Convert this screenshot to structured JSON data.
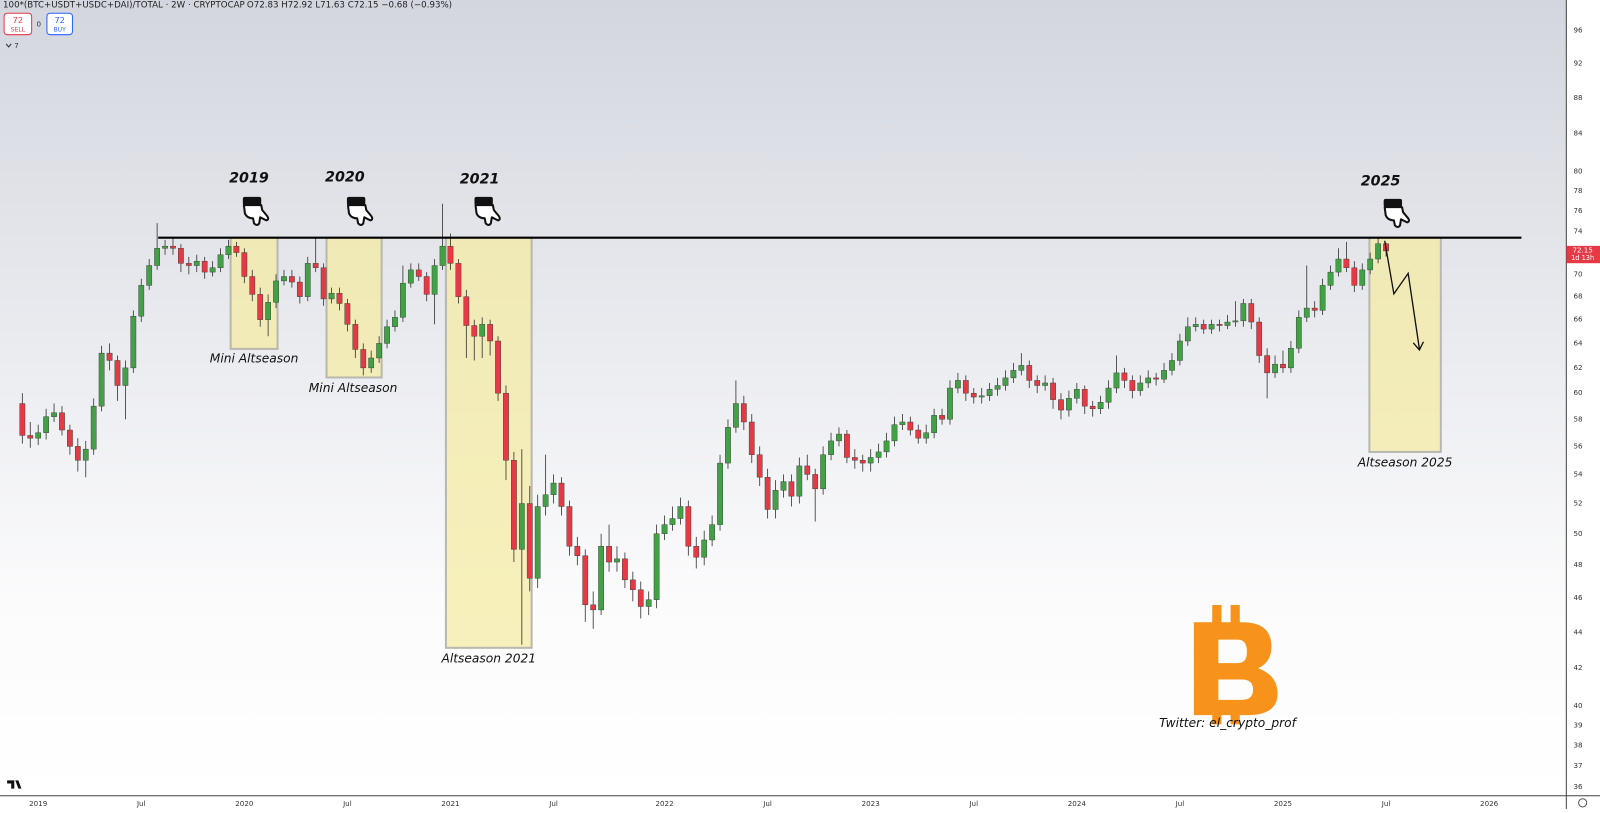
{
  "chart_data": {
    "type": "candlestick",
    "title": "100*(BTC+USDT+USDC+DAI)/TOTAL · 2W · CRYPTOCAP",
    "subtitle": "O72.83 H72.92 L71.63 C72.15 −0.68 (−0.93%)",
    "toolbar": {
      "sell": "72",
      "sell_label": "SELL",
      "spread": "0",
      "buy": "72",
      "buy_label": "BUY",
      "indicators": "7"
    },
    "countdown": "1d 13h",
    "log_scale": true,
    "grid": false,
    "up_color": "#43a047",
    "down_color": "#e53945",
    "ylim": [
      35.6,
      99.9
    ],
    "yticks": [
      36,
      37,
      38,
      39,
      40,
      42,
      44,
      46,
      48,
      50,
      52,
      54,
      56,
      58,
      60,
      62,
      64,
      66,
      68,
      70,
      72,
      74,
      76,
      78,
      80,
      84,
      88,
      92,
      96
    ],
    "annotations": [
      "2019",
      "2020",
      "2021",
      "2025",
      "Mini Altseason",
      "Mini Altseason",
      "Altseason 2021",
      "Altseason 2025",
      "Twitter: el_crypto_prof"
    ],
    "categories": [
      null,
      null,
      "2019",
      null,
      null,
      null,
      null,
      null,
      null,
      null,
      null,
      null,
      null,
      null,
      null,
      "Jul",
      null,
      null,
      null,
      null,
      null,
      null,
      null,
      null,
      null,
      null,
      null,
      null,
      "2020",
      null,
      null,
      null,
      null,
      null,
      null,
      null,
      null,
      null,
      null,
      null,
      null,
      "Jul",
      null,
      null,
      null,
      null,
      null,
      null,
      null,
      null,
      null,
      null,
      null,
      null,
      "2021",
      null,
      null,
      null,
      null,
      null,
      null,
      null,
      null,
      null,
      null,
      null,
      null,
      "Jul",
      null,
      null,
      null,
      null,
      null,
      null,
      null,
      null,
      null,
      null,
      null,
      null,
      null,
      "2022",
      null,
      null,
      null,
      null,
      null,
      null,
      null,
      null,
      null,
      null,
      null,
      null,
      "Jul",
      null,
      null,
      null,
      null,
      null,
      null,
      null,
      null,
      null,
      null,
      null,
      null,
      "2023",
      null,
      null,
      null,
      null,
      null,
      null,
      null,
      null,
      null,
      null,
      null,
      null,
      "Jul",
      null,
      null,
      null,
      null,
      null,
      null,
      null,
      null,
      null,
      null,
      null,
      null,
      "2024",
      null,
      null,
      null,
      null,
      null,
      null,
      null,
      null,
      null,
      null,
      null,
      null,
      "Jul",
      null,
      null,
      null,
      null,
      null,
      null,
      null,
      null,
      null,
      null,
      null,
      null,
      "2025",
      null,
      null,
      null,
      null,
      null,
      null,
      null,
      null,
      null,
      null,
      null,
      null,
      "Jul",
      null,
      null,
      null,
      null,
      null,
      null,
      null,
      null,
      null,
      null,
      null,
      null,
      "2026",
      null
    ],
    "ohlc": [
      [
        59.2,
        60.0,
        56.2,
        56.8
      ],
      [
        56.8,
        57.8,
        55.9,
        56.6
      ],
      [
        56.6,
        57.6,
        56.1,
        57.0
      ],
      [
        57.0,
        58.8,
        56.5,
        58.2
      ],
      [
        58.2,
        59.2,
        57.8,
        58.5
      ],
      [
        58.5,
        59.0,
        56.8,
        57.2
      ],
      [
        57.2,
        57.6,
        55.4,
        56.0
      ],
      [
        56.0,
        56.6,
        54.2,
        55.0
      ],
      [
        55.0,
        56.4,
        53.8,
        55.8
      ],
      [
        55.8,
        59.6,
        55.4,
        59.0
      ],
      [
        59.0,
        63.8,
        58.6,
        63.2
      ],
      [
        63.2,
        64.0,
        61.8,
        62.6
      ],
      [
        62.6,
        63.0,
        59.4,
        60.6
      ],
      [
        60.6,
        62.6,
        58.0,
        62.0
      ],
      [
        62.0,
        66.8,
        61.6,
        66.3
      ],
      [
        66.3,
        69.6,
        65.8,
        69.0
      ],
      [
        69.0,
        71.4,
        68.6,
        70.8
      ],
      [
        70.8,
        74.8,
        70.4,
        72.4
      ],
      [
        72.4,
        73.2,
        71.8,
        72.6
      ],
      [
        72.6,
        73.4,
        71.8,
        72.4
      ],
      [
        72.4,
        72.8,
        70.2,
        71.0
      ],
      [
        71.0,
        71.6,
        70.0,
        70.8
      ],
      [
        70.8,
        71.8,
        70.2,
        71.2
      ],
      [
        71.2,
        71.6,
        69.6,
        70.2
      ],
      [
        70.2,
        71.2,
        69.8,
        70.6
      ],
      [
        70.6,
        72.4,
        70.2,
        71.8
      ],
      [
        71.8,
        73.2,
        71.4,
        72.6
      ],
      [
        72.6,
        73.0,
        71.6,
        72.0
      ],
      [
        72.0,
        72.4,
        69.2,
        69.8
      ],
      [
        69.8,
        70.4,
        67.6,
        68.2
      ],
      [
        68.2,
        68.8,
        65.4,
        66.0
      ],
      [
        66.0,
        68.2,
        64.6,
        67.5
      ],
      [
        67.5,
        70.0,
        67.0,
        69.4
      ],
      [
        69.4,
        70.4,
        69.0,
        69.8
      ],
      [
        69.8,
        70.4,
        68.8,
        69.3
      ],
      [
        69.3,
        69.8,
        67.4,
        68.0
      ],
      [
        68.0,
        71.6,
        67.6,
        71.0
      ],
      [
        71.0,
        73.4,
        70.2,
        70.6
      ],
      [
        70.6,
        71.0,
        67.2,
        67.8
      ],
      [
        67.8,
        68.8,
        67.4,
        68.3
      ],
      [
        68.3,
        68.8,
        66.8,
        67.4
      ],
      [
        67.4,
        67.8,
        65.0,
        65.6
      ],
      [
        65.6,
        66.0,
        62.8,
        63.5
      ],
      [
        63.5,
        64.0,
        61.4,
        62.0
      ],
      [
        62.0,
        63.4,
        61.6,
        62.8
      ],
      [
        62.8,
        64.6,
        62.4,
        64.0
      ],
      [
        64.0,
        66.0,
        63.6,
        65.4
      ],
      [
        65.4,
        66.8,
        65.0,
        66.2
      ],
      [
        66.2,
        70.8,
        65.8,
        69.2
      ],
      [
        69.2,
        71.0,
        68.8,
        70.4
      ],
      [
        70.4,
        71.0,
        69.4,
        69.8
      ],
      [
        69.8,
        70.2,
        67.6,
        68.2
      ],
      [
        68.2,
        71.4,
        65.6,
        70.8
      ],
      [
        70.8,
        76.7,
        70.4,
        72.6
      ],
      [
        72.6,
        73.8,
        70.4,
        71.0
      ],
      [
        71.0,
        71.4,
        67.4,
        68.0
      ],
      [
        68.0,
        68.6,
        62.8,
        65.5
      ],
      [
        65.5,
        66.0,
        62.6,
        64.6
      ],
      [
        64.6,
        66.2,
        62.8,
        65.6
      ],
      [
        65.6,
        66.0,
        63.0,
        64.2
      ],
      [
        64.2,
        64.6,
        59.4,
        60.0
      ],
      [
        60.0,
        60.6,
        53.6,
        55.0
      ],
      [
        55.0,
        55.6,
        48.2,
        49.0
      ],
      [
        49.0,
        55.8,
        43.3,
        52.0
      ],
      [
        52.0,
        53.2,
        46.4,
        47.2
      ],
      [
        47.2,
        52.6,
        46.6,
        51.8
      ],
      [
        51.8,
        55.4,
        51.2,
        52.6
      ],
      [
        52.6,
        54.0,
        52.0,
        53.4
      ],
      [
        53.4,
        53.8,
        51.2,
        51.8
      ],
      [
        51.8,
        52.2,
        48.6,
        49.2
      ],
      [
        49.2,
        49.8,
        48.0,
        48.6
      ],
      [
        48.6,
        49.0,
        44.6,
        45.6
      ],
      [
        45.6,
        46.4,
        44.2,
        45.3
      ],
      [
        45.3,
        50.0,
        45.0,
        49.2
      ],
      [
        49.2,
        50.6,
        47.6,
        48.2
      ],
      [
        48.2,
        49.2,
        47.6,
        48.4
      ],
      [
        48.4,
        48.8,
        46.6,
        47.1
      ],
      [
        47.1,
        47.6,
        45.8,
        46.5
      ],
      [
        46.5,
        47.0,
        44.8,
        45.5
      ],
      [
        45.5,
        46.4,
        45.0,
        45.9
      ],
      [
        45.9,
        50.6,
        45.4,
        50.0
      ],
      [
        50.0,
        51.2,
        49.6,
        50.6
      ],
      [
        50.6,
        51.8,
        50.2,
        51.0
      ],
      [
        51.0,
        52.4,
        50.6,
        51.8
      ],
      [
        51.8,
        52.2,
        48.6,
        49.2
      ],
      [
        49.2,
        49.8,
        47.8,
        48.5
      ],
      [
        48.5,
        50.2,
        48.0,
        49.6
      ],
      [
        49.6,
        51.2,
        49.2,
        50.6
      ],
      [
        50.6,
        55.4,
        50.2,
        54.8
      ],
      [
        54.8,
        58.0,
        54.4,
        57.4
      ],
      [
        57.4,
        61.0,
        57.0,
        59.2
      ],
      [
        59.2,
        59.8,
        57.2,
        57.8
      ],
      [
        57.8,
        58.4,
        54.8,
        55.4
      ],
      [
        55.4,
        56.0,
        53.2,
        53.8
      ],
      [
        53.8,
        54.4,
        51.0,
        51.6
      ],
      [
        51.6,
        53.6,
        51.0,
        52.9
      ],
      [
        52.9,
        54.0,
        52.4,
        53.5
      ],
      [
        53.5,
        54.0,
        51.8,
        52.5
      ],
      [
        52.5,
        55.2,
        52.0,
        54.6
      ],
      [
        54.6,
        55.4,
        53.6,
        54.0
      ],
      [
        54.0,
        54.4,
        50.8,
        53.0
      ],
      [
        53.0,
        56.0,
        52.6,
        55.4
      ],
      [
        55.4,
        57.0,
        55.0,
        56.4
      ],
      [
        56.4,
        57.4,
        56.0,
        56.9
      ],
      [
        56.9,
        57.2,
        54.8,
        55.2
      ],
      [
        55.2,
        55.8,
        54.4,
        55.0
      ],
      [
        55.0,
        55.4,
        54.2,
        54.8
      ],
      [
        54.8,
        55.8,
        54.2,
        55.2
      ],
      [
        55.2,
        56.2,
        54.8,
        55.6
      ],
      [
        55.6,
        57.0,
        55.2,
        56.4
      ],
      [
        56.4,
        58.2,
        56.0,
        57.6
      ],
      [
        57.6,
        58.4,
        57.2,
        57.8
      ],
      [
        57.8,
        58.2,
        56.8,
        57.2
      ],
      [
        57.2,
        57.6,
        56.2,
        56.6
      ],
      [
        56.6,
        57.6,
        56.2,
        57.0
      ],
      [
        57.0,
        58.8,
        56.6,
        58.3
      ],
      [
        58.3,
        58.8,
        57.6,
        58.0
      ],
      [
        58.0,
        61.0,
        57.6,
        60.4
      ],
      [
        60.4,
        61.6,
        60.0,
        61.0
      ],
      [
        61.0,
        61.4,
        59.4,
        60.0
      ],
      [
        60.0,
        60.4,
        59.2,
        59.7
      ],
      [
        59.7,
        60.4,
        59.2,
        59.8
      ],
      [
        59.8,
        60.8,
        59.4,
        60.3
      ],
      [
        60.3,
        61.2,
        59.8,
        60.6
      ],
      [
        60.6,
        61.8,
        60.2,
        61.2
      ],
      [
        61.2,
        62.4,
        60.8,
        61.8
      ],
      [
        61.8,
        63.2,
        61.4,
        62.2
      ],
      [
        62.2,
        62.6,
        60.4,
        61.0
      ],
      [
        61.0,
        61.4,
        60.0,
        60.6
      ],
      [
        60.6,
        61.4,
        60.2,
        60.8
      ],
      [
        60.8,
        61.2,
        58.8,
        59.5
      ],
      [
        59.5,
        60.0,
        58.0,
        58.7
      ],
      [
        58.7,
        60.2,
        58.2,
        59.6
      ],
      [
        59.6,
        60.8,
        59.2,
        60.3
      ],
      [
        60.3,
        60.6,
        58.4,
        59.0
      ],
      [
        59.0,
        59.4,
        58.2,
        58.8
      ],
      [
        58.8,
        59.8,
        58.4,
        59.3
      ],
      [
        59.3,
        61.0,
        58.8,
        60.4
      ],
      [
        60.4,
        63.0,
        60.0,
        61.6
      ],
      [
        61.6,
        62.0,
        60.4,
        61.0
      ],
      [
        61.0,
        61.4,
        59.6,
        60.2
      ],
      [
        60.2,
        61.4,
        59.8,
        60.8
      ],
      [
        60.8,
        61.8,
        60.4,
        61.2
      ],
      [
        61.2,
        61.6,
        60.6,
        61.1
      ],
      [
        61.1,
        62.4,
        60.8,
        61.8
      ],
      [
        61.8,
        63.2,
        61.4,
        62.6
      ],
      [
        62.6,
        64.8,
        62.2,
        64.2
      ],
      [
        64.2,
        66.2,
        63.8,
        65.4
      ],
      [
        65.4,
        66.2,
        65.0,
        65.6
      ],
      [
        65.6,
        66.0,
        64.8,
        65.2
      ],
      [
        65.2,
        66.0,
        64.8,
        65.6
      ],
      [
        65.6,
        66.0,
        65.0,
        65.5
      ],
      [
        65.5,
        66.4,
        65.2,
        65.8
      ],
      [
        65.8,
        67.6,
        65.4,
        65.9
      ],
      [
        65.9,
        67.8,
        65.4,
        67.4
      ],
      [
        67.4,
        67.8,
        65.2,
        65.8
      ],
      [
        65.8,
        66.2,
        62.4,
        63.0
      ],
      [
        63.0,
        63.6,
        59.6,
        61.6
      ],
      [
        61.6,
        63.0,
        61.2,
        62.3
      ],
      [
        62.3,
        63.4,
        61.6,
        62.0
      ],
      [
        62.0,
        64.2,
        61.6,
        63.6
      ],
      [
        63.6,
        66.8,
        63.2,
        66.2
      ],
      [
        66.2,
        70.8,
        65.8,
        67.0
      ],
      [
        67.0,
        67.6,
        66.2,
        66.8
      ],
      [
        66.8,
        69.6,
        66.4,
        69.0
      ],
      [
        69.0,
        70.8,
        68.6,
        70.2
      ],
      [
        70.2,
        72.4,
        69.8,
        71.4
      ],
      [
        71.4,
        73.0,
        70.2,
        70.6
      ],
      [
        70.6,
        71.2,
        68.4,
        69.0
      ],
      [
        69.0,
        71.0,
        68.6,
        70.4
      ],
      [
        70.4,
        72.0,
        70.0,
        71.4
      ],
      [
        71.4,
        73.4,
        71.0,
        72.83
      ],
      [
        72.83,
        72.92,
        71.63,
        72.15
      ],
      null,
      null,
      null,
      null,
      null,
      null,
      null,
      null,
      null,
      null,
      null,
      null,
      null,
      null
    ]
  }
}
